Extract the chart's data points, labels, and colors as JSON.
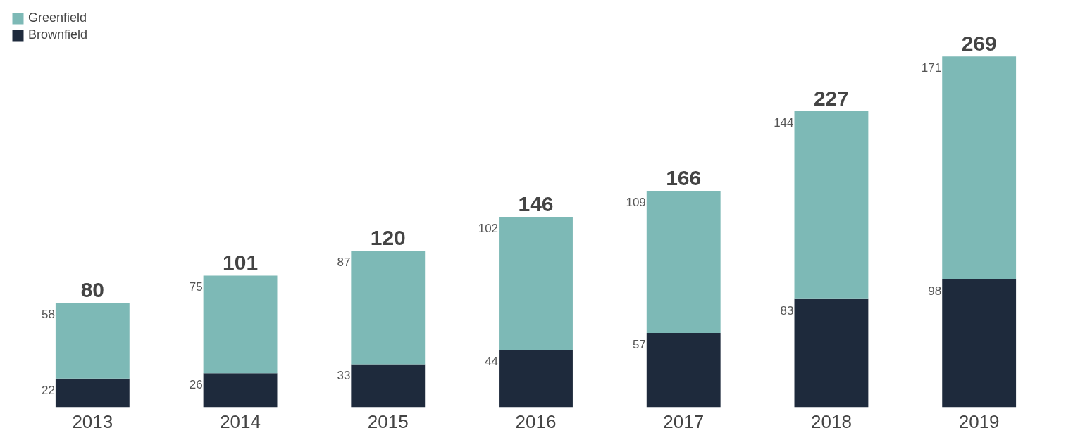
{
  "chart_data": {
    "type": "bar",
    "stacked": true,
    "categories": [
      "2013",
      "2014",
      "2015",
      "2016",
      "2017",
      "2018",
      "2019"
    ],
    "series": [
      {
        "name": "Brownfield",
        "color": "#1e2a3c",
        "values": [
          22,
          26,
          33,
          44,
          57,
          83,
          98
        ]
      },
      {
        "name": "Greenfield",
        "color": "#7db9b6",
        "values": [
          58,
          75,
          87,
          102,
          109,
          144,
          171
        ]
      }
    ],
    "data_labels": true,
    "totals": [
      "80",
      "101",
      "120",
      "146",
      "166",
      "227",
      "269"
    ],
    "legend": "top left",
    "grid": false
  }
}
